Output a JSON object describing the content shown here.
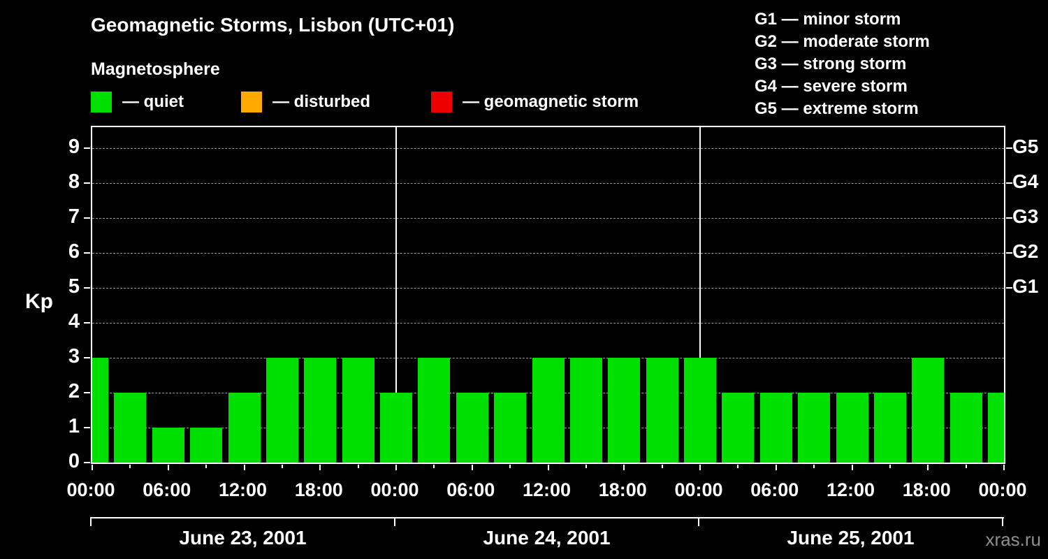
{
  "title": "Geomagnetic Storms, Lisbon (UTC+01)",
  "subtitle": "Magnetosphere",
  "legend": {
    "items": [
      {
        "label": "— quiet",
        "color": "#00e000"
      },
      {
        "label": "— disturbed",
        "color": "#ffaa00"
      },
      {
        "label": "— geomagnetic storm",
        "color": "#ee0000"
      }
    ]
  },
  "storm_scale_legend": {
    "lines": [
      "G1 — minor storm",
      "G2 — moderate storm",
      "G3 — strong storm",
      "G4 — severe storm",
      "G5 — extreme storm"
    ]
  },
  "watermark": "xras.ru",
  "chart_data": {
    "type": "bar",
    "title": "Geomagnetic Storms, Lisbon (UTC+01)",
    "ylabel": "Kp",
    "ylim": [
      0,
      9
    ],
    "yticks": [
      "0",
      "1",
      "2",
      "3",
      "4",
      "5",
      "6",
      "7",
      "8",
      "9"
    ],
    "x_tick_labels": [
      "00:00",
      "06:00",
      "12:00",
      "18:00",
      "00:00",
      "06:00",
      "12:00",
      "18:00",
      "00:00",
      "06:00",
      "12:00",
      "18:00",
      "00:00"
    ],
    "right_axis": [
      {
        "label": "G1",
        "kp": 5
      },
      {
        "label": "G2",
        "kp": 6
      },
      {
        "label": "G3",
        "kp": 7
      },
      {
        "label": "G4",
        "kp": 8
      },
      {
        "label": "G5",
        "kp": 9
      }
    ],
    "interval_hours": 3,
    "days": [
      {
        "label": "June 23, 2001",
        "values": [
          3,
          2,
          1,
          1,
          2,
          3,
          3,
          3
        ]
      },
      {
        "label": "June 24, 2001",
        "values": [
          2,
          3,
          2,
          2,
          3,
          3,
          3,
          3
        ]
      },
      {
        "label": "June 25, 2001",
        "values": [
          3,
          2,
          2,
          2,
          2,
          2,
          3,
          2
        ]
      }
    ],
    "trailing_value": 2,
    "colors": {
      "quiet": "#00e000",
      "disturbed": "#ffaa00",
      "storm": "#ee0000",
      "grid": "#9a9a9a",
      "frame": "#ffffff",
      "day_separator": "#ffffff"
    },
    "grid": "horizontal dashed",
    "legend_position": "top-left"
  }
}
